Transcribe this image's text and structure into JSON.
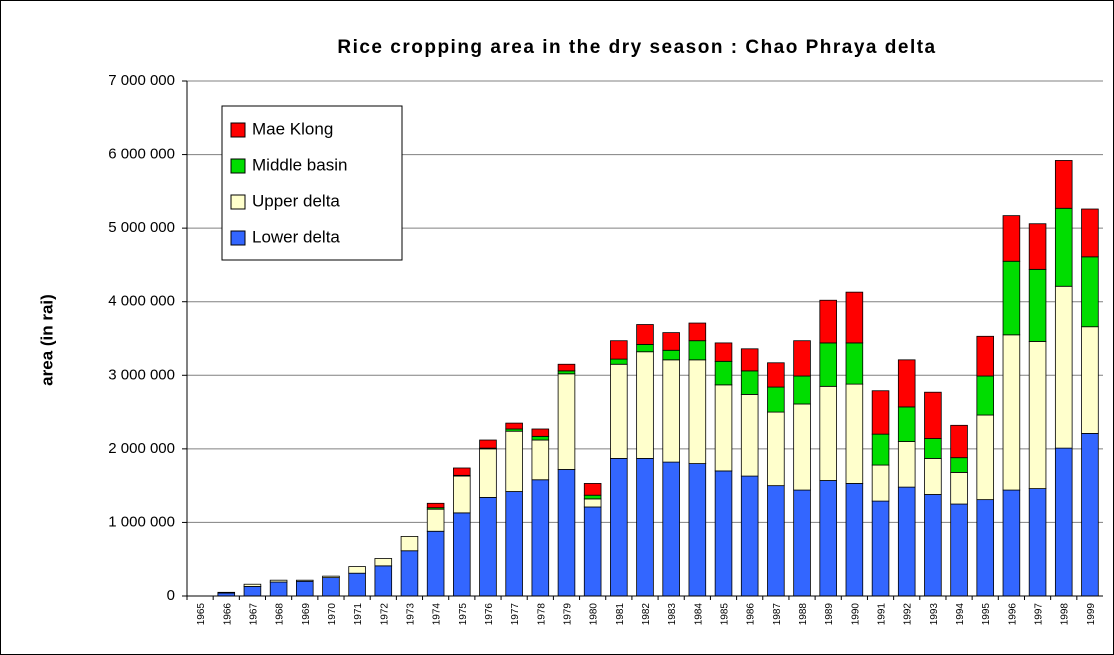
{
  "chart_data": {
    "type": "stacked-bar",
    "title": "Rice cropping area in the dry season : Chao Phraya delta",
    "y_label": "area (in rai)",
    "categories": [
      "1965",
      "1966",
      "1967",
      "1968",
      "1969",
      "1970",
      "1971",
      "1972",
      "1973",
      "1974",
      "1975",
      "1976",
      "1977",
      "1978",
      "1979",
      "1980",
      "1981",
      "1982",
      "1983",
      "1984",
      "1985",
      "1986",
      "1987",
      "1988",
      "1989",
      "1990",
      "1991",
      "1992",
      "1993",
      "1994",
      "1995",
      "1996",
      "1997",
      "1998",
      "1999"
    ],
    "series": [
      {
        "name": "Lower delta",
        "color": "#3366ff",
        "values": [
          0,
          40000,
          130000,
          190000,
          200000,
          250000,
          310000,
          410000,
          615000,
          880000,
          1130000,
          1340000,
          1420000,
          1580000,
          1720000,
          1210000,
          1870000,
          1870000,
          1820000,
          1800000,
          1700000,
          1630000,
          1500000,
          1440000,
          1570000,
          1530000,
          1290000,
          1480000,
          1380000,
          1250000,
          1310000,
          1440000,
          1460000,
          2010000,
          2210000
        ]
      },
      {
        "name": "Upper delta",
        "color": "#ffffcc",
        "values": [
          0,
          10000,
          30000,
          25000,
          15000,
          20000,
          90000,
          100000,
          195000,
          300000,
          500000,
          660000,
          820000,
          540000,
          1300000,
          110000,
          1280000,
          1450000,
          1390000,
          1410000,
          1170000,
          1110000,
          1000000,
          1170000,
          1280000,
          1350000,
          490000,
          620000,
          490000,
          430000,
          1150000,
          2110000,
          2000000,
          2200000,
          1450000
        ]
      },
      {
        "name": "Middle basin",
        "color": "#00dd00",
        "values": [
          0,
          0,
          0,
          0,
          0,
          0,
          0,
          0,
          0,
          20000,
          10000,
          10000,
          30000,
          50000,
          40000,
          50000,
          70000,
          100000,
          130000,
          260000,
          320000,
          320000,
          340000,
          380000,
          590000,
          560000,
          420000,
          470000,
          270000,
          200000,
          530000,
          1000000,
          980000,
          1060000,
          950000
        ]
      },
      {
        "name": "Mae Klong",
        "color": "#ff0000",
        "values": [
          0,
          0,
          0,
          0,
          0,
          0,
          0,
          0,
          0,
          60000,
          100000,
          110000,
          80000,
          100000,
          90000,
          160000,
          250000,
          270000,
          240000,
          240000,
          250000,
          300000,
          330000,
          480000,
          580000,
          690000,
          590000,
          640000,
          630000,
          440000,
          540000,
          620000,
          620000,
          650000,
          650000
        ]
      }
    ],
    "ylim": [
      0,
      7000000
    ],
    "yticks": [
      0,
      {
        "value": 1000000,
        "label": "1 000 000"
      },
      {
        "value": 2000000,
        "label": "2 000 000"
      },
      {
        "value": 3000000,
        "label": "3 000 000"
      },
      {
        "value": 4000000,
        "label": "4 000 000"
      },
      {
        "value": 5000000,
        "label": "5 000 000"
      },
      {
        "value": 6000000,
        "label": "6 000 000"
      },
      {
        "value": 7000000,
        "label": "7 000 000"
      }
    ],
    "grid": true,
    "legend": "upper left"
  }
}
